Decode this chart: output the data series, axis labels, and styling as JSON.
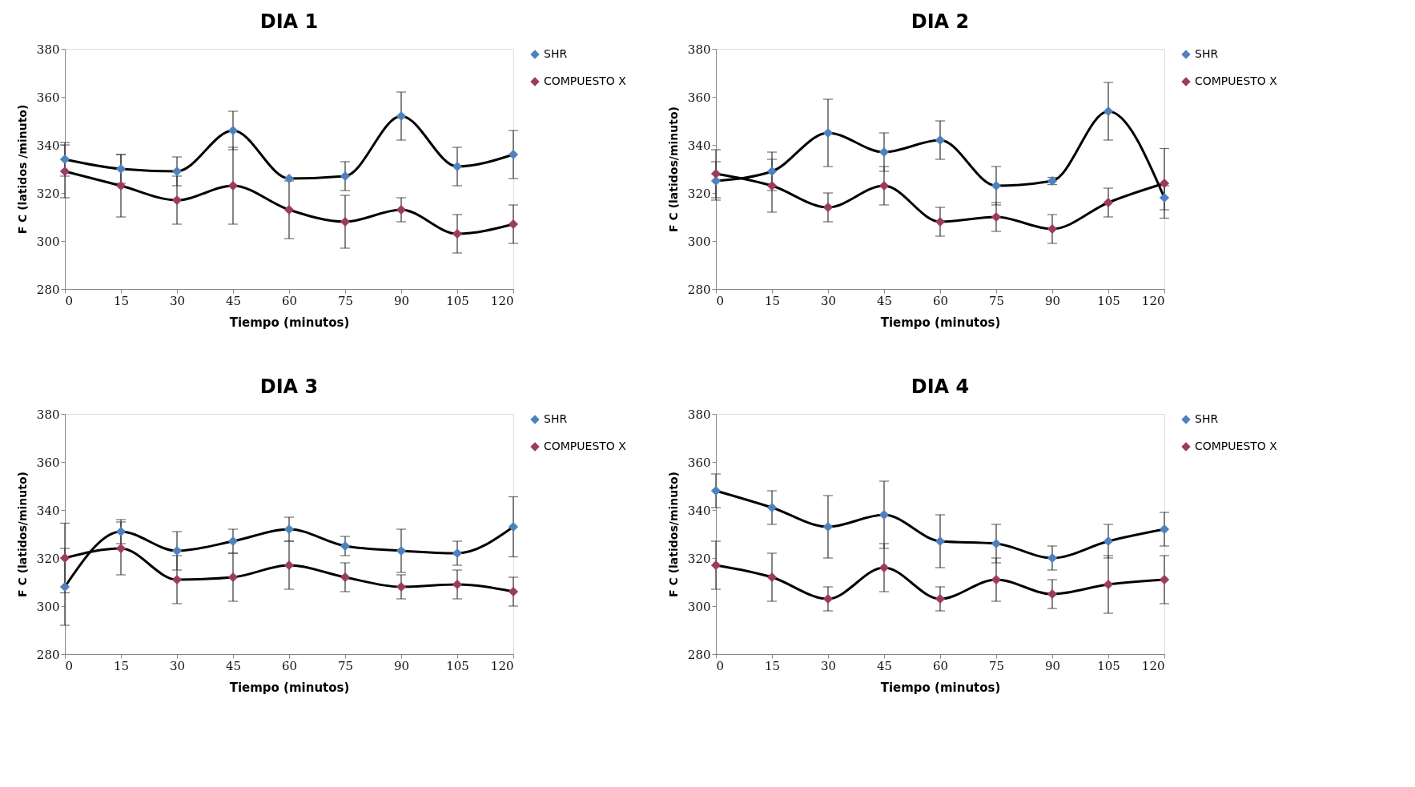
{
  "chart_data": [
    {
      "type": "line",
      "title": "DIA 1",
      "xlabel": "Tiempo (minutos)",
      "ylabel": "F C (latidos /minuto)",
      "x": [
        0,
        15,
        30,
        45,
        60,
        75,
        90,
        105,
        120
      ],
      "xlim": [
        0,
        120
      ],
      "xticks": [
        0,
        15,
        30,
        45,
        60,
        75,
        90,
        105,
        120
      ],
      "ylim": [
        280,
        380
      ],
      "yticks": [
        280,
        300,
        320,
        340,
        360,
        380
      ],
      "marker": "diamond",
      "legend": "right",
      "series": [
        {
          "name": "SHR",
          "color": "#4f81bd",
          "values": [
            334,
            330,
            329,
            346,
            326,
            327,
            352,
            331,
            336
          ],
          "errors": [
            7,
            6,
            6,
            8,
            null,
            6,
            10,
            8,
            10
          ]
        },
        {
          "name": "COMPUESTO X",
          "color": "#9b3b64",
          "values": [
            329,
            323,
            317,
            323,
            313,
            308,
            313,
            303,
            307
          ],
          "errors": [
            11,
            13,
            10,
            16,
            12,
            11,
            5,
            8,
            8
          ]
        }
      ]
    },
    {
      "type": "line",
      "title": "DIA 2",
      "xlabel": "Tiempo (minutos)",
      "ylabel": "F C (latidos/minuto)",
      "x": [
        0,
        15,
        30,
        45,
        60,
        75,
        90,
        105,
        120
      ],
      "xlim": [
        0,
        120
      ],
      "xticks": [
        0,
        15,
        30,
        45,
        60,
        75,
        90,
        105,
        120
      ],
      "ylim": [
        280,
        380
      ],
      "yticks": [
        280,
        300,
        320,
        340,
        360,
        380
      ],
      "marker": "diamond",
      "legend": "right",
      "series": [
        {
          "name": "SHR",
          "color": "#4f81bd",
          "values": [
            325,
            329,
            345,
            337,
            342,
            323,
            325,
            354,
            318
          ],
          "errors": [
            8,
            8,
            14,
            8,
            8,
            8,
            1.5,
            12,
            5
          ]
        },
        {
          "name": "COMPUESTO X",
          "color": "#9b3b64",
          "values": [
            328,
            323,
            314,
            323,
            308,
            310,
            305,
            316,
            324
          ],
          "errors": [
            10,
            11,
            6,
            8,
            6,
            6,
            6,
            6,
            14.5
          ]
        }
      ]
    },
    {
      "type": "line",
      "title": "DIA 3",
      "xlabel": "Tiempo (minutos)",
      "ylabel": "F C (latidos/minuto)",
      "x": [
        0,
        15,
        30,
        45,
        60,
        75,
        90,
        105,
        120
      ],
      "xlim": [
        0,
        120
      ],
      "xticks": [
        0,
        15,
        30,
        45,
        60,
        75,
        90,
        105,
        120
      ],
      "ylim": [
        280,
        380
      ],
      "yticks": [
        280,
        300,
        320,
        340,
        360,
        380
      ],
      "marker": "diamond",
      "legend": "right",
      "series": [
        {
          "name": "SHR",
          "color": "#4f81bd",
          "values": [
            308,
            331,
            323,
            327,
            332,
            325,
            323,
            322,
            333
          ],
          "errors": [
            16,
            5,
            8,
            5,
            5,
            4,
            9,
            5,
            12.5
          ]
        },
        {
          "name": "COMPUESTO X",
          "color": "#9b3b64",
          "values": [
            320,
            324,
            311,
            312,
            317,
            312,
            308,
            309,
            306
          ],
          "errors": [
            14.5,
            11,
            10,
            10,
            10,
            6,
            5,
            6,
            6
          ]
        }
      ]
    },
    {
      "type": "line",
      "title": "DIA 4",
      "xlabel": "Tiempo (minutos)",
      "ylabel": "F C (latidos/minuto)",
      "x": [
        0,
        15,
        30,
        45,
        60,
        75,
        90,
        105,
        120
      ],
      "xlim": [
        0,
        120
      ],
      "xticks": [
        0,
        15,
        30,
        45,
        60,
        75,
        90,
        105,
        120
      ],
      "ylim": [
        280,
        380
      ],
      "yticks": [
        280,
        300,
        320,
        340,
        360,
        380
      ],
      "marker": "diamond",
      "legend": "right",
      "series": [
        {
          "name": "SHR",
          "color": "#4f81bd",
          "values": [
            348,
            341,
            333,
            338,
            327,
            326,
            320,
            327,
            332
          ],
          "errors": [
            7,
            7,
            13,
            14,
            11,
            8,
            5,
            7,
            7
          ]
        },
        {
          "name": "COMPUESTO X",
          "color": "#9b3b64",
          "values": [
            317,
            312,
            303,
            316,
            303,
            311,
            305,
            309,
            311
          ],
          "errors": [
            10,
            10,
            5,
            10,
            5,
            9,
            6,
            12,
            10
          ]
        }
      ]
    }
  ]
}
